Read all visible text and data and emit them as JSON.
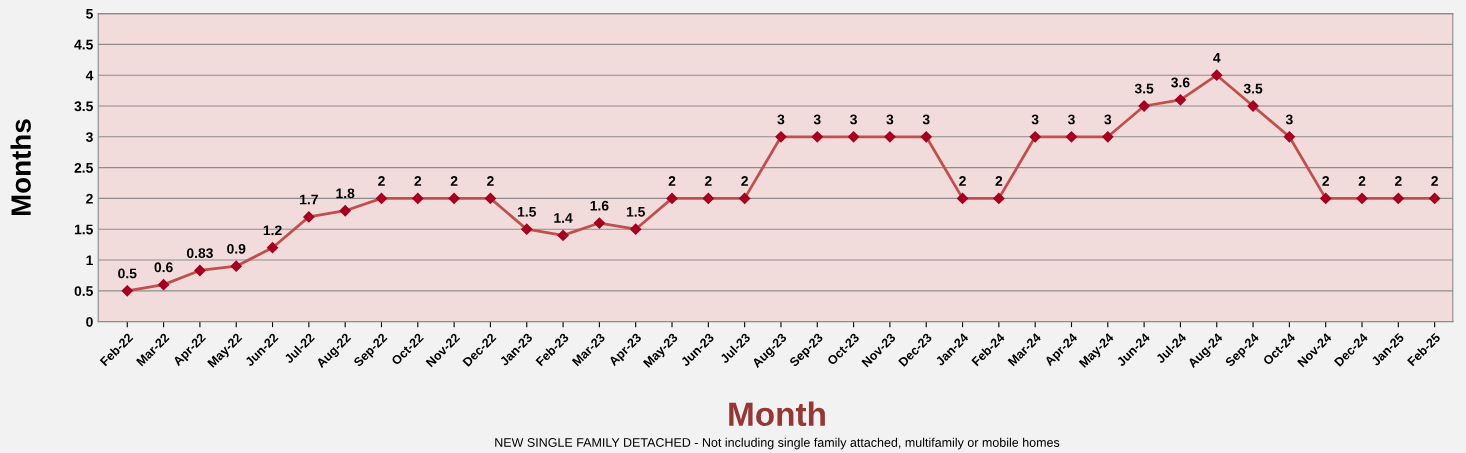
{
  "chart_data": {
    "type": "line",
    "xlabel": "Month",
    "ylabel": "Months",
    "categories": [
      "Feb-22",
      "Mar-22",
      "Apr-22",
      "May-22",
      "Jun-22",
      "Jul-22",
      "Aug-22",
      "Sep-22",
      "Oct-22",
      "Nov-22",
      "Dec-22",
      "Jan-23",
      "Feb-23",
      "Mar-23",
      "Apr-23",
      "May-23",
      "Jun-23",
      "Jul-23",
      "Aug-23",
      "Sep-23",
      "Oct-23",
      "Nov-23",
      "Dec-23",
      "Jan-24",
      "Feb-24",
      "Mar-24",
      "Apr-24",
      "May-24",
      "Jun-24",
      "Jul-24",
      "Aug-24",
      "Sep-24",
      "Oct-24",
      "Nov-24",
      "Dec-24",
      "Jan-25",
      "Feb-25"
    ],
    "series": [
      {
        "color": "#c0504d",
        "values": [
          0.5,
          0.6,
          0.83,
          0.9,
          1.2,
          1.7,
          1.8,
          2,
          2,
          2,
          2,
          1.5,
          1.4,
          1.6,
          1.5,
          2,
          2,
          2,
          3,
          3,
          3,
          3,
          3,
          2,
          2,
          3,
          3,
          3,
          3.5,
          3.6,
          4,
          3.5,
          3,
          2,
          2,
          2,
          2
        ]
      }
    ],
    "ylim": [
      0,
      5
    ],
    "yticks": [
      0,
      0.5,
      1,
      1.5,
      2,
      2.5,
      3,
      3.5,
      4,
      4.5,
      5
    ],
    "grid": "y",
    "marker": "diamond",
    "line_style": "solid",
    "data_labels": true,
    "legend": false,
    "annotations": [
      "NEW SINGLE FAMILY DETACHED - Not including single family attached, multifamily or mobile homes"
    ]
  }
}
